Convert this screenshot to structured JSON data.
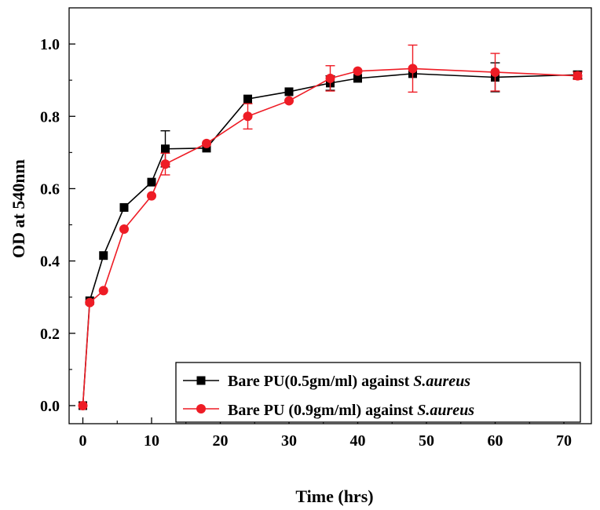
{
  "chart_data": {
    "type": "line",
    "xlabel": "Time (hrs)",
    "ylabel": "OD at 540nm",
    "xlim": [
      -2,
      74
    ],
    "ylim": [
      -0.05,
      1.1
    ],
    "xticks": [
      0,
      10,
      20,
      30,
      40,
      50,
      60,
      70
    ],
    "yticks": [
      0.0,
      0.2,
      0.4,
      0.6,
      0.8,
      1.0
    ],
    "x_tick_labels": [
      "0",
      "10",
      "20",
      "30",
      "40",
      "50",
      "60",
      "70"
    ],
    "y_tick_labels": [
      "0.0",
      "0.2",
      "0.4",
      "0.6",
      "0.8",
      "1.0"
    ],
    "grid": false,
    "legend_position": "bottom-right",
    "series": [
      {
        "legend_prefix": "Bare PU(0.5gm/ml) against ",
        "legend_organism": "S.aureus",
        "color": "#000000",
        "marker": "square",
        "x": [
          0,
          1,
          3,
          6,
          10,
          12,
          18,
          24,
          30,
          36,
          40,
          48,
          60,
          72
        ],
        "y": [
          0.0,
          0.29,
          0.415,
          0.548,
          0.618,
          0.71,
          0.712,
          0.848,
          0.868,
          0.892,
          0.905,
          0.918,
          0.908,
          0.915
        ],
        "err": [
          0,
          0,
          0,
          0,
          0,
          0.05,
          0,
          0,
          0,
          0.02,
          0,
          0,
          0.04,
          0.01
        ]
      },
      {
        "legend_prefix": "Bare PU (0.9gm/ml) against ",
        "legend_organism": "S.aureus",
        "color": "#ee1c25",
        "marker": "circle",
        "x": [
          0,
          1,
          3,
          6,
          10,
          12,
          18,
          24,
          30,
          36,
          40,
          48,
          60,
          72
        ],
        "y": [
          0.0,
          0.285,
          0.318,
          0.488,
          0.58,
          0.668,
          0.725,
          0.8,
          0.843,
          0.905,
          0.925,
          0.932,
          0.922,
          0.912
        ],
        "err": [
          0,
          0,
          0,
          0,
          0,
          0.03,
          0,
          0.035,
          0,
          0.035,
          0,
          0.065,
          0.052,
          0.01
        ]
      }
    ]
  }
}
